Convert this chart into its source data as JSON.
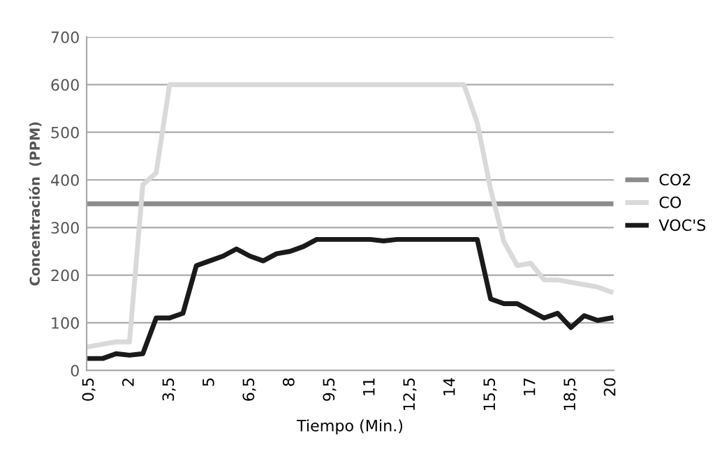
{
  "chart_data": {
    "type": "line",
    "xlabel": "Tiempo (Min.)",
    "ylabel": "Concentración  (PPM)",
    "categories": [
      "0,5",
      null,
      null,
      "2",
      null,
      null,
      "3,5",
      null,
      null,
      "5",
      null,
      null,
      "6,5",
      null,
      null,
      "8",
      null,
      null,
      "9,5",
      null,
      null,
      "11",
      null,
      null,
      "12,5",
      null,
      null,
      "14",
      null,
      null,
      "15,5",
      null,
      null,
      "17",
      null,
      null,
      "18,5",
      null,
      null,
      "20"
    ],
    "series": [
      {
        "name": "CO2",
        "color": "#8c8c8c",
        "values": [
          350,
          350,
          350,
          350,
          350,
          350,
          350,
          350,
          350,
          350,
          350,
          350,
          350,
          350,
          350,
          350,
          350,
          350,
          350,
          350,
          350,
          350,
          350,
          350,
          350,
          350,
          350,
          350,
          350,
          350,
          350,
          350,
          350,
          350,
          350,
          350,
          350,
          350,
          350,
          350
        ]
      },
      {
        "name": "CO",
        "color": "#d9d9d9",
        "values": [
          50,
          55,
          60,
          60,
          390,
          415,
          600,
          600,
          600,
          600,
          600,
          600,
          600,
          600,
          600,
          600,
          600,
          600,
          600,
          600,
          600,
          600,
          600,
          600,
          600,
          600,
          600,
          600,
          600,
          520,
          380,
          270,
          220,
          225,
          190,
          190,
          185,
          180,
          175,
          165
        ]
      },
      {
        "name": "VOC'S",
        "color": "#1a1a1a",
        "values": [
          25,
          25,
          35,
          32,
          35,
          110,
          110,
          120,
          220,
          230,
          240,
          255,
          240,
          230,
          245,
          250,
          260,
          275,
          275,
          275,
          275,
          275,
          272,
          275,
          275,
          275,
          275,
          275,
          275,
          275,
          150,
          140,
          140,
          125,
          110,
          120,
          90,
          115,
          105,
          110
        ]
      }
    ],
    "ylim": [
      0,
      700
    ],
    "yticks": [
      0,
      100,
      200,
      300,
      400,
      500,
      600,
      700
    ],
    "grid": "y",
    "legend": "right",
    "marker": "none",
    "line_style": "solid"
  }
}
